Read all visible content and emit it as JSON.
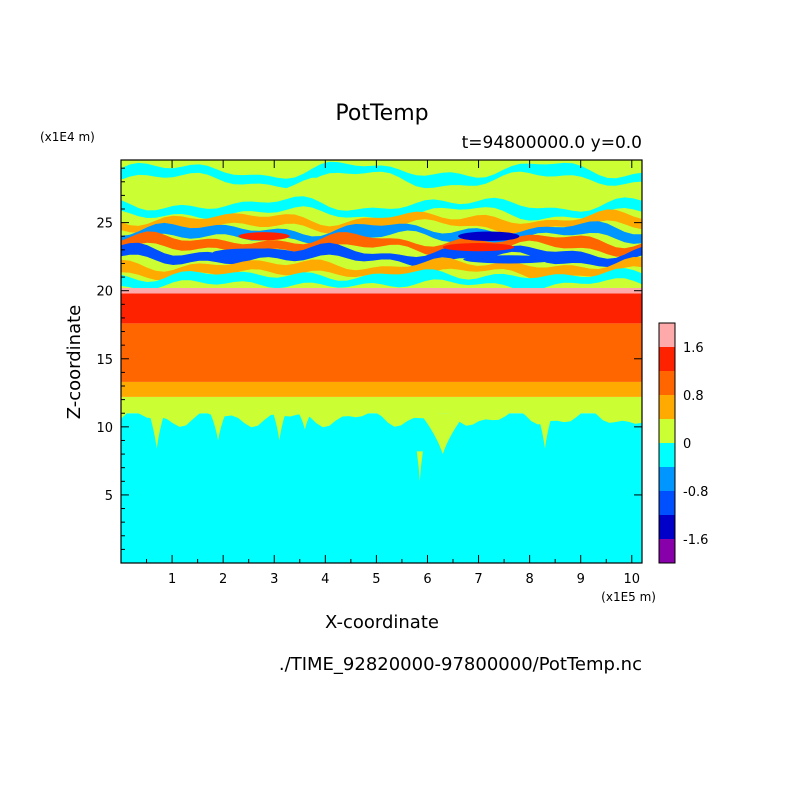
{
  "chart_data": {
    "type": "heatmap",
    "title": "PotTemp",
    "subtitle": "t=94800000.0 y=0.0",
    "xlabel": "X-coordinate",
    "ylabel": "Z-coordinate",
    "x_unit": "(x1E5 m)",
    "y_unit": "(x1E4 m)",
    "footer": "./TIME_92820000-97800000/PotTemp.nc",
    "xlim": [
      0,
      10.2
    ],
    "ylim": [
      0,
      29.6
    ],
    "x_ticks": [
      1,
      2,
      3,
      4,
      5,
      6,
      7,
      8,
      9,
      10
    ],
    "x_tick_labels": [
      "1",
      "2",
      "3",
      "4",
      "5",
      "6",
      "7",
      "8",
      "9",
      "10"
    ],
    "y_ticks": [
      5,
      10,
      15,
      20,
      25
    ],
    "y_tick_labels": [
      "5",
      "10",
      "15",
      "20",
      "25"
    ],
    "colorbar": {
      "levels": [
        -2.0,
        -1.6,
        -1.2,
        -0.8,
        -0.4,
        0,
        0.4,
        0.8,
        1.2,
        1.6,
        2.0
      ],
      "colors": [
        "#8800aa",
        "#0000c8",
        "#0050ff",
        "#0096ff",
        "#00ffff",
        "#ccff33",
        "#ffaa00",
        "#ff6600",
        "#ff2200",
        "#ffaaaa"
      ],
      "tick_values": [
        -1.6,
        -0.8,
        0,
        0.8,
        1.6
      ],
      "tick_labels": [
        "-1.6",
        "-0.8",
        "0",
        "0.8",
        "1.6"
      ]
    },
    "bands": [
      {
        "z0": 0,
        "z1": 11,
        "color": "#00ffff"
      },
      {
        "z0": 11,
        "z1": 12.2,
        "color": "#ccff33"
      },
      {
        "z0": 12.2,
        "z1": 13.3,
        "color": "#ffaa00"
      },
      {
        "z0": 13.3,
        "z1": 17.6,
        "color": "#ff6600"
      },
      {
        "z0": 17.6,
        "z1": 19.8,
        "color": "#ff2200"
      },
      {
        "z0": 19.8,
        "z1": 20.2,
        "color": "#ffaaaa"
      }
    ],
    "upper_layers": [
      {
        "z": 28.5,
        "amp": 0.8,
        "color": "#00ffff"
      },
      {
        "z": 27.2,
        "amp": 0.7,
        "color": "#ccff33"
      },
      {
        "z": 26.0,
        "amp": 0.6,
        "color": "#00ffff"
      },
      {
        "z": 25.0,
        "amp": 0.5,
        "color": "#ffaa00"
      },
      {
        "z": 24.2,
        "amp": 0.5,
        "color": "#0096ff"
      },
      {
        "z": 23.4,
        "amp": 0.5,
        "color": "#ff6600"
      },
      {
        "z": 22.6,
        "amp": 0.5,
        "color": "#0050ff"
      },
      {
        "z": 21.6,
        "amp": 0.4,
        "color": "#ffaa00"
      },
      {
        "z": 20.8,
        "amp": 0.3,
        "color": "#00ffff"
      }
    ],
    "hot_spots": [
      {
        "x": 7.2,
        "z": 24.0,
        "rx": 0.6,
        "rz": 0.35,
        "color": "#0000c8"
      },
      {
        "x": 7.0,
        "z": 23.2,
        "rx": 0.7,
        "rz": 0.3,
        "color": "#ff2200"
      },
      {
        "x": 2.8,
        "z": 24.0,
        "rx": 0.5,
        "rz": 0.3,
        "color": "#ff2200"
      },
      {
        "x": 7.6,
        "z": 22.3,
        "rx": 0.9,
        "rz": 0.3,
        "color": "#0050ff"
      },
      {
        "x": 2.6,
        "z": 22.8,
        "rx": 0.8,
        "rz": 0.3,
        "color": "#0050ff"
      }
    ],
    "plumes": [
      {
        "x": 0.7,
        "w": 0.15,
        "depth": 2.6
      },
      {
        "x": 1.9,
        "w": 0.15,
        "depth": 2.0
      },
      {
        "x": 3.1,
        "w": 0.12,
        "depth": 2.0
      },
      {
        "x": 3.6,
        "w": 0.12,
        "depth": 1.2
      },
      {
        "x": 6.3,
        "w": 0.45,
        "depth": 3.0
      },
      {
        "x": 8.3,
        "w": 0.15,
        "depth": 2.6
      },
      {
        "x": 5.85,
        "w": 0.06,
        "depth": 4.8
      }
    ]
  }
}
